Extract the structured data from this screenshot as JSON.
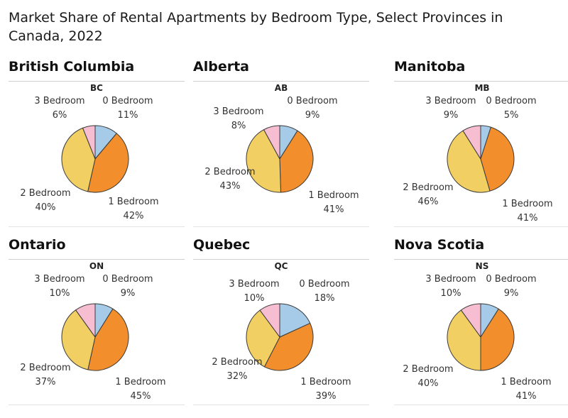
{
  "title": "Market Share of Rental Apartments by Bedroom Type, Select Provinces in Canada, 2022",
  "colors": {
    "0 Bedroom": "#a6cbe8",
    "1 Bedroom": "#f28e2b",
    "2 Bedroom": "#f1cf63",
    "3 Bedroom": "#f7bed2"
  },
  "chart_data": [
    {
      "type": "pie",
      "title": "British Columbia",
      "subtitle": "BC",
      "categories": [
        "0 Bedroom",
        "1 Bedroom",
        "2 Bedroom",
        "3 Bedroom"
      ],
      "values": [
        11,
        42,
        40,
        6
      ],
      "labels": [
        "11%",
        "42%",
        "40%",
        "6%"
      ]
    },
    {
      "type": "pie",
      "title": "Alberta",
      "subtitle": "AB",
      "categories": [
        "0 Bedroom",
        "1 Bedroom",
        "2 Bedroom",
        "3 Bedroom"
      ],
      "values": [
        9,
        41,
        43,
        8
      ],
      "labels": [
        "9%",
        "41%",
        "43%",
        "8%"
      ]
    },
    {
      "type": "pie",
      "title": "Manitoba",
      "subtitle": "MB",
      "categories": [
        "0 Bedroom",
        "1 Bedroom",
        "2 Bedroom",
        "3 Bedroom"
      ],
      "values": [
        5,
        41,
        46,
        9
      ],
      "labels": [
        "5%",
        "41%",
        "46%",
        "9%"
      ]
    },
    {
      "type": "pie",
      "title": "Ontario",
      "subtitle": "ON",
      "categories": [
        "0 Bedroom",
        "1 Bedroom",
        "2 Bedroom",
        "3 Bedroom"
      ],
      "values": [
        9,
        45,
        37,
        10
      ],
      "labels": [
        "9%",
        "45%",
        "37%",
        "10%"
      ]
    },
    {
      "type": "pie",
      "title": "Quebec",
      "subtitle": "QC",
      "categories": [
        "0 Bedroom",
        "1 Bedroom",
        "2 Bedroom",
        "3 Bedroom"
      ],
      "values": [
        18,
        39,
        32,
        10
      ],
      "labels": [
        "18%",
        "39%",
        "32%",
        "10%"
      ]
    },
    {
      "type": "pie",
      "title": "Nova Scotia",
      "subtitle": "NS",
      "categories": [
        "0 Bedroom",
        "1 Bedroom",
        "2 Bedroom",
        "3 Bedroom"
      ],
      "values": [
        9,
        41,
        40,
        10
      ],
      "labels": [
        "9%",
        "41%",
        "40%",
        "10%"
      ]
    }
  ]
}
